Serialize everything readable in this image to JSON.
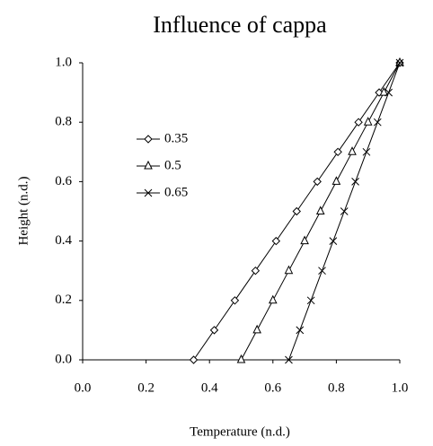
{
  "chart_data": {
    "type": "line",
    "title": "Influence of cappa",
    "x_label": "Temperature (n.d.)",
    "y_label": "Height (n.d.)",
    "xlim": [
      0,
      1
    ],
    "ylim": [
      0,
      1
    ],
    "xticks": [
      {
        "value": 0,
        "label": "0.0"
      },
      0.2,
      0.4,
      0.6,
      0.8,
      {
        "value": 1,
        "label": "1.0"
      }
    ],
    "yticks": [
      {
        "value": 0,
        "label": "0.0"
      },
      0.2,
      0.4,
      0.6,
      0.8,
      {
        "value": 1,
        "label": "1.0"
      }
    ],
    "grid": false,
    "series": [
      {
        "name": "0.35",
        "color": "#000000",
        "marker": "diamond",
        "x": [
          0.35,
          0.415,
          0.48,
          0.545,
          0.61,
          0.675,
          0.74,
          0.805,
          0.87,
          0.935,
          1.0
        ],
        "values": [
          0,
          0.1,
          0.2,
          0.3,
          0.4,
          0.5,
          0.6,
          0.7,
          0.8,
          0.9,
          1.0
        ]
      },
      {
        "name": "0.5",
        "color": "#000000",
        "marker": "triangle",
        "x": [
          0.5,
          0.55,
          0.6,
          0.65,
          0.7,
          0.75,
          0.8,
          0.85,
          0.9,
          0.95,
          1.0
        ],
        "values": [
          0,
          0.1,
          0.2,
          0.3,
          0.4,
          0.5,
          0.6,
          0.7,
          0.8,
          0.9,
          1.0
        ]
      },
      {
        "name": "0.65",
        "color": "#000000",
        "marker": "cross",
        "x": [
          0.65,
          0.685,
          0.72,
          0.755,
          0.79,
          0.825,
          0.86,
          0.895,
          0.93,
          0.965,
          1.0
        ],
        "values": [
          0,
          0.1,
          0.2,
          0.3,
          0.4,
          0.5,
          0.6,
          0.7,
          0.8,
          0.9,
          1.0
        ]
      }
    ]
  }
}
